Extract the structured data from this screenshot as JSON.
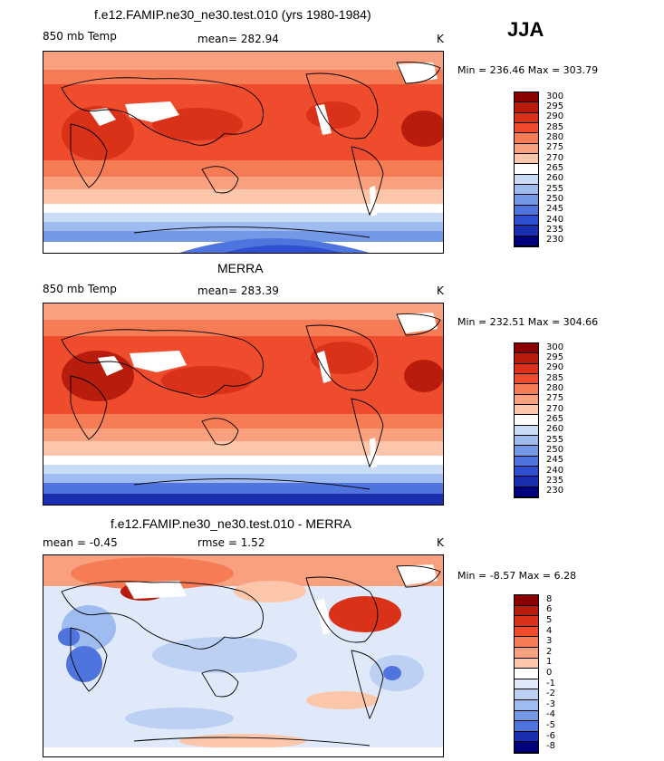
{
  "season": "JJA",
  "panels": [
    {
      "title": "f.e12.FAMIP.ne30_ne30.test.010 (yrs 1980-1984)",
      "left_label": "850 mb Temp",
      "mid_label": "mean= 282.94",
      "right_label": "K",
      "min_max": "Min = 236.46 Max = 303.79",
      "levels": [
        "300",
        "295",
        "290",
        "285",
        "280",
        "275",
        "270",
        "265",
        "260",
        "255",
        "250",
        "245",
        "240",
        "235",
        "230"
      ],
      "colors": [
        "#8b0000",
        "#b71c0c",
        "#d93218",
        "#ee4c2c",
        "#f67c55",
        "#f9a07e",
        "#fcc6ab",
        "#ffffff",
        "#c9dbf5",
        "#9ebcef",
        "#7398e6",
        "#4f74de",
        "#2e4fd0",
        "#1a2fb0",
        "#00007f"
      ]
    },
    {
      "title": "MERRA",
      "left_label": "850 mb Temp",
      "mid_label": "mean= 283.39",
      "right_label": "K",
      "min_max": "Min = 232.51 Max = 304.66",
      "levels": [
        "300",
        "295",
        "290",
        "285",
        "280",
        "275",
        "270",
        "265",
        "260",
        "255",
        "250",
        "245",
        "240",
        "235",
        "230"
      ],
      "colors": [
        "#8b0000",
        "#b71c0c",
        "#d93218",
        "#ee4c2c",
        "#f67c55",
        "#f9a07e",
        "#fcc6ab",
        "#ffffff",
        "#c9dbf5",
        "#9ebcef",
        "#7398e6",
        "#4f74de",
        "#2e4fd0",
        "#1a2fb0",
        "#00007f"
      ]
    },
    {
      "title": "f.e12.FAMIP.ne30_ne30.test.010 - MERRA",
      "left_label": "mean = -0.45",
      "mid_label": "rmse = 1.52",
      "right_label": "K",
      "min_max": "Min = -8.57 Max = 6.28",
      "levels": [
        "8",
        "6",
        "5",
        "4",
        "3",
        "2",
        "1",
        "0",
        "-1",
        "-2",
        "-3",
        "-4",
        "-5",
        "-6",
        "-8"
      ],
      "colors": [
        "#8b0000",
        "#b71c0c",
        "#d93218",
        "#ee4c2c",
        "#f67c55",
        "#f9a07e",
        "#fcc6ab",
        "#ffffff",
        "#dfe9f9",
        "#bcd0f3",
        "#9ebcef",
        "#7398e6",
        "#4f74de",
        "#1a2fb0",
        "#00007f"
      ]
    }
  ]
}
